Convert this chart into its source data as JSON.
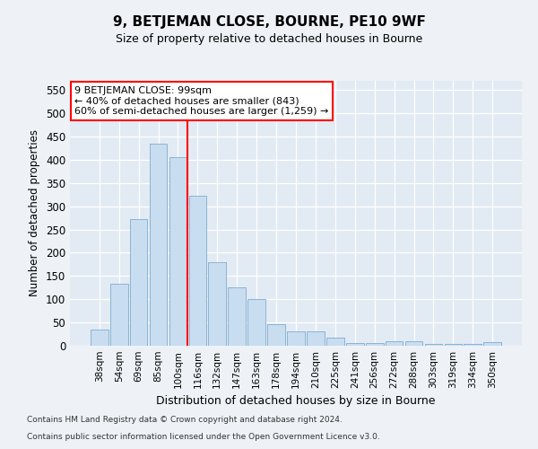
{
  "title": "9, BETJEMAN CLOSE, BOURNE, PE10 9WF",
  "subtitle": "Size of property relative to detached houses in Bourne",
  "xlabel": "Distribution of detached houses by size in Bourne",
  "ylabel": "Number of detached properties",
  "categories": [
    "38sqm",
    "54sqm",
    "69sqm",
    "85sqm",
    "100sqm",
    "116sqm",
    "132sqm",
    "147sqm",
    "163sqm",
    "178sqm",
    "194sqm",
    "210sqm",
    "225sqm",
    "241sqm",
    "256sqm",
    "272sqm",
    "288sqm",
    "303sqm",
    "319sqm",
    "334sqm",
    "350sqm"
  ],
  "values": [
    35,
    133,
    272,
    435,
    405,
    323,
    180,
    125,
    101,
    46,
    30,
    30,
    18,
    5,
    5,
    10,
    10,
    4,
    4,
    4,
    7
  ],
  "bar_color": "#c9ddf0",
  "bar_edge_color": "#8ab4d4",
  "vline_x": 4.5,
  "vline_color": "red",
  "annotation_text": "9 BETJEMAN CLOSE: 99sqm\n← 40% of detached houses are smaller (843)\n60% of semi-detached houses are larger (1,259) →",
  "annotation_box_color": "white",
  "annotation_box_edge_color": "red",
  "ylim": [
    0,
    570
  ],
  "yticks": [
    0,
    50,
    100,
    150,
    200,
    250,
    300,
    350,
    400,
    450,
    500,
    550
  ],
  "footer1": "Contains HM Land Registry data © Crown copyright and database right 2024.",
  "footer2": "Contains public sector information licensed under the Open Government Licence v3.0.",
  "bg_color": "#eef2f7",
  "plot_bg_color": "#e2eaf3"
}
